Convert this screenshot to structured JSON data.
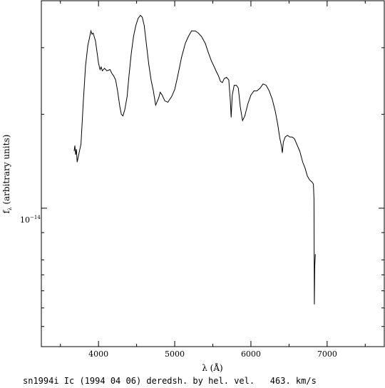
{
  "chart_data": {
    "type": "line",
    "xlabel": "λ (Å)",
    "ylabel": "f",
    "ylabel_subscript": "λ",
    "ylabel_suffix": " (arbitrary units)",
    "x_ticks": [
      {
        "value": 4000,
        "label": "4000"
      },
      {
        "value": 5000,
        "label": "5000"
      },
      {
        "value": 6000,
        "label": "6000"
      },
      {
        "value": 7000,
        "label": "7000"
      }
    ],
    "y_tick_label": {
      "base": "10",
      "exponent": "−14",
      "value": 1.0
    },
    "y_scale": "log",
    "xlim": [
      3250,
      7750
    ],
    "ylim": [
      0.55,
      2.45
    ],
    "grid": false,
    "series": [
      {
        "points": [
          [
            3680,
            1.28
          ],
          [
            3690,
            1.31
          ],
          [
            3700,
            1.26
          ],
          [
            3710,
            1.29
          ],
          [
            3720,
            1.22
          ],
          [
            3740,
            1.26
          ],
          [
            3770,
            1.32
          ],
          [
            3800,
            1.58
          ],
          [
            3830,
            1.85
          ],
          [
            3860,
            2.02
          ],
          [
            3880,
            2.08
          ],
          [
            3900,
            2.15
          ],
          [
            3915,
            2.12
          ],
          [
            3930,
            2.13
          ],
          [
            3960,
            2.06
          ],
          [
            3985,
            1.94
          ],
          [
            4000,
            1.87
          ],
          [
            4020,
            1.82
          ],
          [
            4035,
            1.84
          ],
          [
            4050,
            1.81
          ],
          [
            4080,
            1.83
          ],
          [
            4110,
            1.81
          ],
          [
            4150,
            1.82
          ],
          [
            4175,
            1.79
          ],
          [
            4200,
            1.77
          ],
          [
            4225,
            1.74
          ],
          [
            4250,
            1.66
          ],
          [
            4280,
            1.55
          ],
          [
            4300,
            1.5
          ],
          [
            4320,
            1.49
          ],
          [
            4345,
            1.53
          ],
          [
            4375,
            1.62
          ],
          [
            4400,
            1.77
          ],
          [
            4430,
            1.95
          ],
          [
            4460,
            2.1
          ],
          [
            4490,
            2.2
          ],
          [
            4520,
            2.27
          ],
          [
            4550,
            2.3
          ],
          [
            4575,
            2.28
          ],
          [
            4600,
            2.2
          ],
          [
            4625,
            2.05
          ],
          [
            4660,
            1.86
          ],
          [
            4690,
            1.74
          ],
          [
            4720,
            1.66
          ],
          [
            4750,
            1.56
          ],
          [
            4790,
            1.61
          ],
          [
            4810,
            1.65
          ],
          [
            4835,
            1.63
          ],
          [
            4870,
            1.59
          ],
          [
            4910,
            1.58
          ],
          [
            4960,
            1.62
          ],
          [
            5000,
            1.67
          ],
          [
            5040,
            1.77
          ],
          [
            5090,
            1.92
          ],
          [
            5140,
            2.04
          ],
          [
            5180,
            2.1
          ],
          [
            5220,
            2.15
          ],
          [
            5270,
            2.15
          ],
          [
            5310,
            2.13
          ],
          [
            5350,
            2.1
          ],
          [
            5400,
            2.04
          ],
          [
            5440,
            1.96
          ],
          [
            5480,
            1.89
          ],
          [
            5520,
            1.84
          ],
          [
            5550,
            1.8
          ],
          [
            5575,
            1.77
          ],
          [
            5600,
            1.73
          ],
          [
            5625,
            1.72
          ],
          [
            5650,
            1.75
          ],
          [
            5680,
            1.76
          ],
          [
            5710,
            1.74
          ],
          [
            5730,
            1.59
          ],
          [
            5740,
            1.48
          ],
          [
            5755,
            1.63
          ],
          [
            5780,
            1.7
          ],
          [
            5810,
            1.7
          ],
          [
            5835,
            1.68
          ],
          [
            5860,
            1.55
          ],
          [
            5890,
            1.46
          ],
          [
            5920,
            1.49
          ],
          [
            5960,
            1.57
          ],
          [
            6000,
            1.63
          ],
          [
            6040,
            1.66
          ],
          [
            6080,
            1.66
          ],
          [
            6120,
            1.68
          ],
          [
            6160,
            1.71
          ],
          [
            6200,
            1.7
          ],
          [
            6240,
            1.66
          ],
          [
            6280,
            1.6
          ],
          [
            6320,
            1.52
          ],
          [
            6350,
            1.44
          ],
          [
            6380,
            1.35
          ],
          [
            6400,
            1.31
          ],
          [
            6412,
            1.27
          ],
          [
            6425,
            1.33
          ],
          [
            6450,
            1.36
          ],
          [
            6480,
            1.37
          ],
          [
            6510,
            1.36
          ],
          [
            6540,
            1.36
          ],
          [
            6570,
            1.35
          ],
          [
            6600,
            1.32
          ],
          [
            6640,
            1.28
          ],
          [
            6680,
            1.22
          ],
          [
            6710,
            1.19
          ],
          [
            6740,
            1.15
          ],
          [
            6770,
            1.13
          ],
          [
            6800,
            1.12
          ],
          [
            6820,
            1.11
          ],
          [
            6828,
            1.04
          ],
          [
            6832,
            0.66
          ],
          [
            6838,
            0.78
          ],
          [
            6845,
            0.82
          ]
        ]
      }
    ]
  },
  "caption": "sn1994i Ic (1994 04 06) deredsh. by hel. vel.   463. km/s"
}
